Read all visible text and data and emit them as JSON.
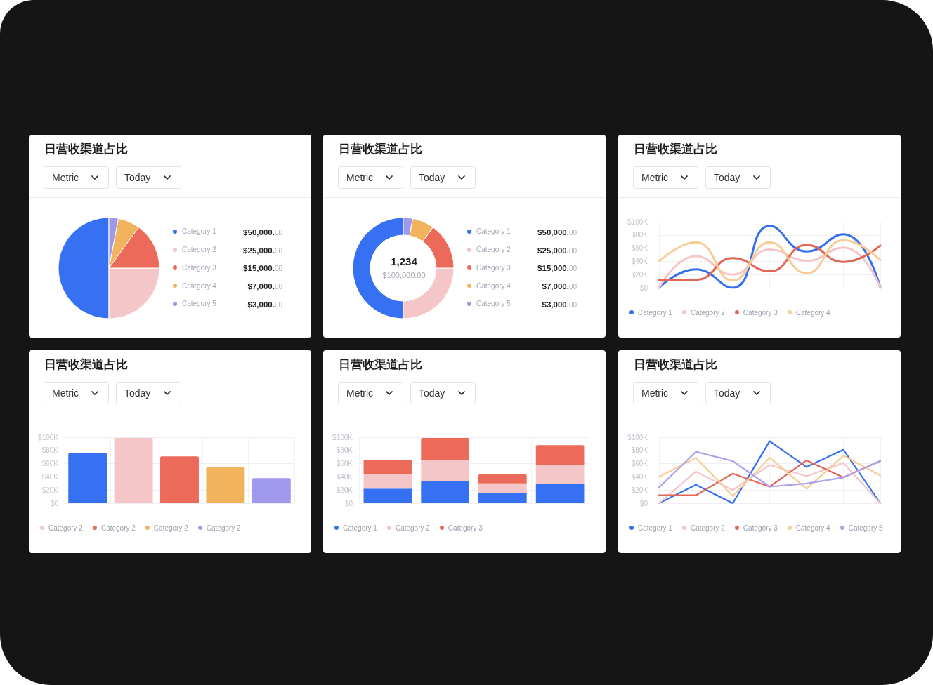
{
  "chart_data": [
    {
      "type": "pie",
      "title": "日营收渠道占比",
      "annotations": [
        "Metric",
        "Today"
      ],
      "categories": [
        "Category 1",
        "Category 2",
        "Category 3",
        "Category 4",
        "Category 5"
      ],
      "values": [
        50000,
        25000,
        15000,
        7000,
        3000
      ],
      "colors": [
        "#3571f2",
        "#f4c6c8",
        "#eb6a5a",
        "#f2b35d",
        "#9f98ec"
      ],
      "value_labels": [
        "$50,000.00",
        "$25,000.00",
        "$15,000.00",
        "$7,000.00",
        "$3,000.00"
      ],
      "legend": "right"
    },
    {
      "type": "donut",
      "title": "日营收渠道占比",
      "annotations": [
        "Metric",
        "Today",
        "1,234",
        "$100,000.00"
      ],
      "categories": [
        "Category 1",
        "Category 2",
        "Category 3",
        "Category 4",
        "Category 5"
      ],
      "values": [
        50000,
        25000,
        15000,
        7000,
        3000
      ],
      "colors": [
        "#3571f2",
        "#f4c6c8",
        "#eb6a5a",
        "#f2b35d",
        "#9f98ec"
      ],
      "value_labels": [
        "$50,000.00",
        "$25,000.00",
        "$15,000.00",
        "$7,000.00",
        "$3,000.00"
      ],
      "legend": "right"
    },
    {
      "type": "line",
      "title": "日营收渠道占比",
      "annotations": [
        "Metric",
        "Today"
      ],
      "categories": [
        null,
        null,
        null,
        null,
        null,
        null,
        null
      ],
      "series": [
        {
          "name": "Category 1",
          "color": "#3470ee",
          "values": [
            0,
            28,
            0,
            94,
            55,
            81,
            0
          ]
        },
        {
          "name": "Category 2",
          "color": "#f4c5c9",
          "values": [
            0,
            48,
            20,
            58,
            41,
            61,
            0
          ]
        },
        {
          "name": "Category 3",
          "color": "#e26656",
          "values": [
            12,
            12,
            45,
            25,
            65,
            39,
            64
          ]
        },
        {
          "name": "Category 4",
          "color": "#f5cd95",
          "values": [
            40,
            69,
            11,
            69,
            22,
            72,
            42
          ]
        }
      ],
      "ylim": [
        0,
        100
      ],
      "yticks": [
        {
          "value": 0,
          "label": "$0"
        },
        {
          "value": 20,
          "label": "$20K"
        },
        {
          "value": 40,
          "label": "$40K"
        },
        {
          "value": 60,
          "label": "$60K"
        },
        {
          "value": 80,
          "label": "$80K"
        },
        {
          "value": 100,
          "label": "$100K"
        }
      ],
      "grid": true,
      "tick_labels": "y",
      "marker": "none",
      "legend": "bottom left"
    },
    {
      "type": "bar",
      "title": "日营收渠道占比",
      "annotations": [
        "Metric",
        "Today"
      ],
      "categories": [
        null,
        null,
        null,
        null,
        null
      ],
      "series": [
        {
          "color": "#3571f2",
          "values": [
            76,
            null,
            null,
            null,
            null
          ]
        },
        {
          "name": "Category 2",
          "color": "#f4c6c8",
          "values": [
            null,
            99,
            null,
            null,
            null
          ]
        },
        {
          "name": "Category 2",
          "color": "#eb6a5a",
          "values": [
            null,
            null,
            71,
            null,
            null
          ]
        },
        {
          "name": "Category 2",
          "color": "#f2b35d",
          "values": [
            null,
            null,
            null,
            55,
            null
          ]
        },
        {
          "name": "Category 2",
          "color": "#9f98ec",
          "values": [
            null,
            null,
            null,
            null,
            38
          ]
        }
      ],
      "ylim": [
        0,
        100
      ],
      "yticks": [
        {
          "value": 0,
          "label": "$0"
        },
        {
          "value": 20,
          "label": "$20K"
        },
        {
          "value": 40,
          "label": "$40K"
        },
        {
          "value": 60,
          "label": "$60K"
        },
        {
          "value": 80,
          "label": "$80K"
        },
        {
          "value": 100,
          "label": "$100K"
        }
      ],
      "grid": true,
      "tick_labels": "y",
      "legend": "bottom left"
    },
    {
      "type": "bar",
      "title": "日营收渠道占比",
      "annotations": [
        "Metric",
        "Today"
      ],
      "categories": [
        null,
        null,
        null,
        null
      ],
      "stacked": true,
      "series": [
        {
          "name": "Category 1",
          "color": "#3571f2",
          "values": [
            22,
            33,
            15,
            29
          ]
        },
        {
          "name": "Category 2",
          "color": "#f4c6c8",
          "values": [
            22,
            33,
            15,
            29
          ]
        },
        {
          "name": "Category 3",
          "color": "#eb6a5a",
          "values": [
            22,
            33,
            14,
            30
          ]
        }
      ],
      "ylim": [
        0,
        100
      ],
      "yticks": [
        {
          "value": 0,
          "label": "$0"
        },
        {
          "value": 20,
          "label": "$20K"
        },
        {
          "value": 40,
          "label": "$40K"
        },
        {
          "value": 60,
          "label": "$60K"
        },
        {
          "value": 80,
          "label": "$80K"
        },
        {
          "value": 100,
          "label": "$100K"
        }
      ],
      "grid": true,
      "tick_labels": "y",
      "legend": "bottom left"
    },
    {
      "type": "line",
      "title": "日营收渠道占比",
      "annotations": [
        "Metric",
        "Today"
      ],
      "categories": [
        null,
        null,
        null,
        null,
        null,
        null,
        null
      ],
      "series": [
        {
          "name": "Category 1",
          "color": "#3470ee",
          "values": [
            0,
            28,
            0,
            94,
            55,
            81,
            0
          ]
        },
        {
          "name": "Category 2",
          "color": "#f4c5c9",
          "values": [
            0,
            48,
            20,
            58,
            41,
            61,
            0
          ]
        },
        {
          "name": "Category 3",
          "color": "#e26656",
          "values": [
            12,
            12,
            45,
            25,
            65,
            39,
            64
          ]
        },
        {
          "name": "Category 4",
          "color": "#f5cd95",
          "values": [
            40,
            69,
            11,
            69,
            22,
            72,
            42
          ]
        },
        {
          "name": "Category 5",
          "color": "#ada1ef",
          "values": [
            24,
            78,
            64,
            25,
            30,
            39,
            64
          ]
        }
      ],
      "ylim": [
        0,
        100
      ],
      "yticks": [
        {
          "value": 0,
          "label": "$0"
        },
        {
          "value": 20,
          "label": "$20K"
        },
        {
          "value": 40,
          "label": "$40K"
        },
        {
          "value": 60,
          "label": "$60K"
        },
        {
          "value": 80,
          "label": "$80K"
        },
        {
          "value": 100,
          "label": "$100K"
        }
      ],
      "grid": true,
      "tick_labels": "y",
      "marker": "none",
      "legend": "bottom left"
    }
  ]
}
